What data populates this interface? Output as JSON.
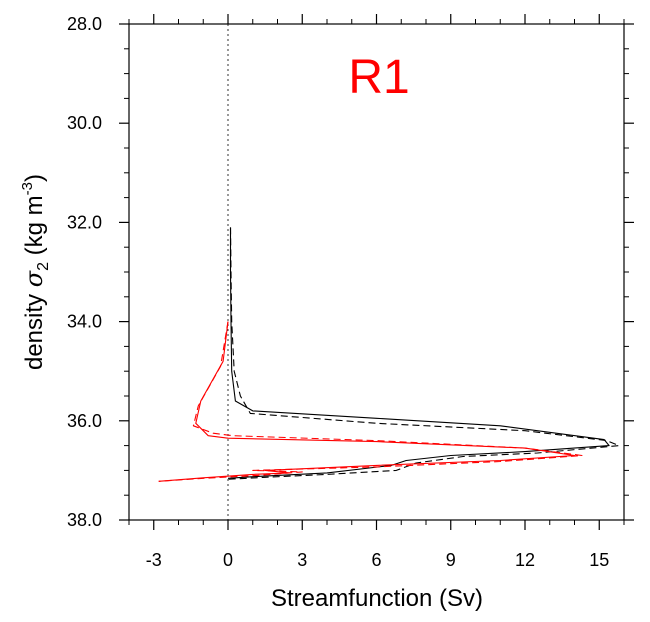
{
  "chart_data": {
    "type": "line",
    "title": "R1",
    "title_color": "#ff0000",
    "xlabel": "Streamfunction (Sv)",
    "ylabel": {
      "prefix": "density ",
      "sigma": "σ",
      "sigma_sub": "2",
      "unit_open": " (kg m",
      "unit_sup": "-3",
      "unit_close": ")"
    },
    "xlim": [
      -4,
      16
    ],
    "ylim": [
      28.0,
      38.0
    ],
    "y_inverted": true,
    "x_ticks": [
      -3,
      0,
      3,
      6,
      9,
      12,
      15
    ],
    "x_tick_labels": [
      "-3",
      "0",
      "3",
      "6",
      "9",
      "12",
      "15"
    ],
    "y_ticks": [
      28,
      30,
      32,
      34,
      36,
      38
    ],
    "y_tick_labels": [
      "28.0",
      "30.0",
      "32.0",
      "34.0",
      "36.0",
      "38.0"
    ],
    "zero_line": 0,
    "grid": false,
    "series": [
      {
        "color": "#000000",
        "dash": "solid",
        "points": [
          [
            0.1,
            32.1
          ],
          [
            0.1,
            33.0
          ],
          [
            0.12,
            34.0
          ],
          [
            0.15,
            35.0
          ],
          [
            0.3,
            35.6
          ],
          [
            1.0,
            35.8
          ],
          [
            6.0,
            35.95
          ],
          [
            11.0,
            36.1
          ],
          [
            15.2,
            36.38
          ],
          [
            15.4,
            36.5
          ],
          [
            12.0,
            36.62
          ],
          [
            9.0,
            36.7
          ],
          [
            7.2,
            36.8
          ],
          [
            6.6,
            36.9
          ],
          [
            4.0,
            37.05
          ],
          [
            1.2,
            37.12
          ],
          [
            0.0,
            37.16
          ]
        ]
      },
      {
        "color": "#000000",
        "dash": "dashed",
        "points": [
          [
            0.1,
            32.1
          ],
          [
            0.12,
            33.0
          ],
          [
            0.15,
            34.0
          ],
          [
            0.25,
            35.0
          ],
          [
            0.5,
            35.5
          ],
          [
            0.9,
            35.85
          ],
          [
            6.0,
            36.05
          ],
          [
            12.0,
            36.2
          ],
          [
            15.3,
            36.4
          ],
          [
            15.8,
            36.5
          ],
          [
            12.5,
            36.65
          ],
          [
            9.5,
            36.72
          ],
          [
            7.6,
            36.85
          ],
          [
            6.8,
            37.0
          ],
          [
            4.0,
            37.08
          ],
          [
            1.5,
            37.14
          ],
          [
            0.0,
            37.18
          ]
        ]
      },
      {
        "color": "#ff0000",
        "dash": "solid",
        "points": [
          [
            0.0,
            34.0
          ],
          [
            -0.2,
            34.8
          ],
          [
            -1.1,
            35.6
          ],
          [
            -1.3,
            36.05
          ],
          [
            -0.8,
            36.3
          ],
          [
            0.0,
            36.35
          ],
          [
            6.0,
            36.42
          ],
          [
            12.0,
            36.55
          ],
          [
            14.0,
            36.7
          ],
          [
            11.0,
            36.8
          ],
          [
            6.0,
            36.9
          ],
          [
            1.5,
            37.0
          ],
          [
            2.5,
            37.05
          ],
          [
            1.0,
            37.08
          ],
          [
            -1.0,
            37.15
          ],
          [
            -2.8,
            37.22
          ]
        ]
      },
      {
        "color": "#ff0000",
        "dash": "dashed",
        "points": [
          [
            0.0,
            34.0
          ],
          [
            -0.3,
            34.9
          ],
          [
            -1.2,
            35.7
          ],
          [
            -1.4,
            36.1
          ],
          [
            -0.6,
            36.25
          ],
          [
            0.2,
            36.3
          ],
          [
            6.0,
            36.4
          ],
          [
            12.0,
            36.55
          ],
          [
            14.3,
            36.7
          ],
          [
            11.0,
            36.82
          ],
          [
            6.0,
            36.93
          ],
          [
            1.0,
            37.0
          ],
          [
            3.0,
            37.03
          ],
          [
            1.2,
            37.1
          ],
          [
            -1.0,
            37.16
          ],
          [
            -2.8,
            37.22
          ]
        ]
      }
    ]
  }
}
